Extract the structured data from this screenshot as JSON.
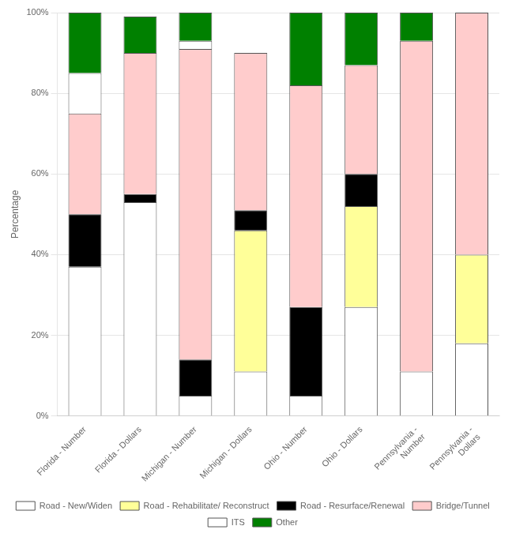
{
  "chart_data": {
    "type": "bar",
    "stacked": true,
    "categories": [
      "Florida - Number",
      "Florida - Dollars",
      "Michigan - Number",
      "Michigan - Dollars",
      "Ohio - Number",
      "Ohio - Dollars",
      "Pennsylvania -\nNumber",
      "Pennsylvania -\nDollars"
    ],
    "series": [
      {
        "name": "Road - New/Widen",
        "color": "#FFFFFF",
        "values": [
          37,
          53,
          5,
          11,
          5,
          27,
          11,
          18
        ]
      },
      {
        "name": "Road - Rehabilitate/ Reconstruct",
        "color": "#FFFF99",
        "values": [
          0,
          0,
          0,
          35,
          0,
          25,
          0,
          22
        ]
      },
      {
        "name": "Road - Resurface/Renewal",
        "color": "#000000",
        "values": [
          13,
          2,
          9,
          5,
          22,
          8,
          0,
          0
        ]
      },
      {
        "name": "Bridge/Tunnel",
        "color": "#FFCCCC",
        "values": [
          25,
          35,
          77,
          39,
          55,
          27,
          82,
          60
        ]
      },
      {
        "name": "ITS",
        "color": "#FFFFFF",
        "values": [
          10,
          0,
          2,
          0,
          0,
          0,
          0,
          0
        ]
      },
      {
        "name": "Other",
        "color": "#008000",
        "values": [
          15,
          9,
          7,
          0,
          18,
          13,
          7,
          0
        ]
      }
    ],
    "ylabel": "Percentage",
    "ylim": [
      0,
      100
    ],
    "yticks": [
      {
        "value": 0,
        "label": "0%"
      },
      {
        "value": 20,
        "label": "20%"
      },
      {
        "value": 40,
        "label": "40%"
      },
      {
        "value": 60,
        "label": "60%"
      },
      {
        "value": 80,
        "label": "80%"
      },
      {
        "value": 100,
        "label": "100%"
      }
    ],
    "grid": true,
    "legend": "bottom"
  }
}
